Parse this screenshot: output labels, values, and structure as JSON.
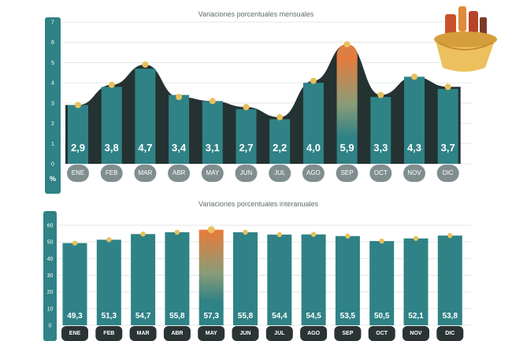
{
  "colors": {
    "teal": "#2f8286",
    "dark_bar": "#3b3f3f",
    "area": "#243232",
    "dot": "#e8c05b",
    "highlight_top": "#ea7a3a",
    "highlight_bottom": "#2f8286",
    "highlight_text": "#f3c04b",
    "axis_strip": "#2f8286",
    "pill_grey": "#808e8f",
    "pill_dark": "#2b3434"
  },
  "chart_data": [
    {
      "type": "bar",
      "title": "Variaciones porcentuales mensuales",
      "unit": "%",
      "categories": [
        "ENE",
        "FEB",
        "MAR",
        "ABR",
        "MAY",
        "JUN",
        "JUL",
        "AGO",
        "SEP",
        "OCT",
        "NOV",
        "DIC"
      ],
      "value_labels": [
        "2,9",
        "3,8",
        "4,7",
        "3,4",
        "3,1",
        "2,7",
        "2,2",
        "4,0",
        "5,9",
        "3,3",
        "4,3",
        "3,7"
      ],
      "values": [
        2.9,
        3.8,
        4.7,
        3.4,
        3.1,
        2.7,
        2.2,
        4.0,
        5.9,
        3.3,
        4.3,
        3.7
      ],
      "line_values": [
        2.9,
        3.9,
        4.9,
        3.3,
        3.1,
        2.8,
        2.3,
        4.1,
        5.9,
        3.4,
        4.3,
        3.8
      ],
      "highlight_index": 8,
      "ylim": [
        0,
        7
      ],
      "yticks": [
        "0",
        "1",
        "2",
        "3",
        "4",
        "5",
        "6",
        "7"
      ],
      "grid": true
    },
    {
      "type": "bar",
      "title": "Variaciones porcentuales interanuales",
      "categories": [
        "ENE",
        "FEB",
        "MAR",
        "ABR",
        "MAY",
        "JUN",
        "JUL",
        "AGO",
        "SEP",
        "OCT",
        "NOV",
        "DIC"
      ],
      "value_labels": [
        "49,3",
        "51,3",
        "54,7",
        "55,8",
        "57,3",
        "55,8",
        "54,4",
        "54,5",
        "53,5",
        "50,5",
        "52,1",
        "53,8"
      ],
      "values": [
        49.3,
        51.3,
        54.7,
        55.8,
        57.3,
        55.8,
        54.4,
        54.5,
        53.5,
        50.5,
        52.1,
        53.8
      ],
      "highlight_index": 4,
      "ylim": [
        0,
        60
      ],
      "yticks": [
        "0",
        "10",
        "20",
        "30",
        "40",
        "50",
        "60"
      ],
      "grid": true
    }
  ]
}
